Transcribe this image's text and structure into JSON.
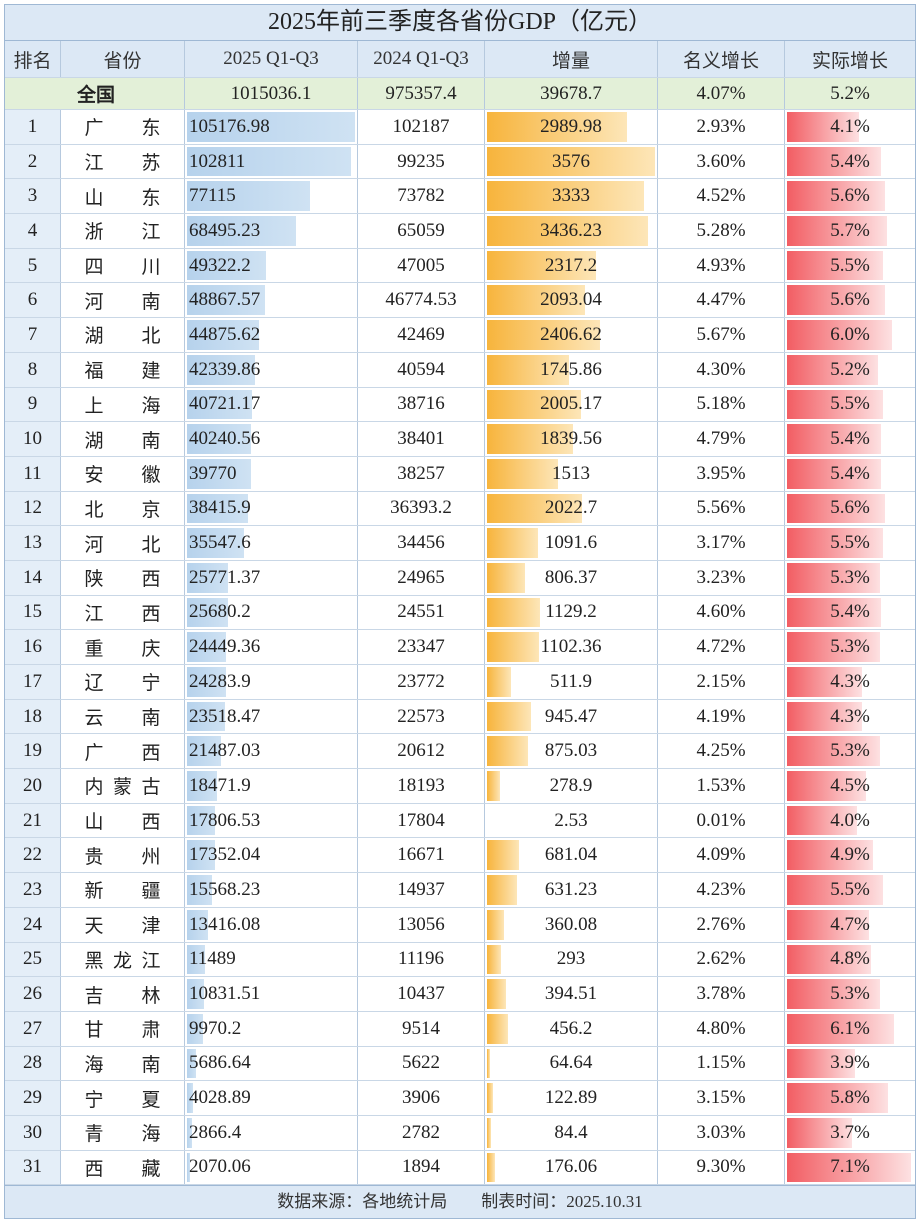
{
  "chart_data": {
    "type": "table",
    "title": "2025年前三季度各省份GDP（亿元）",
    "columns": [
      "排名",
      "省份",
      "2025 Q1-Q3",
      "2024 Q1-Q3",
      "增量",
      "名义增长",
      "实际增长"
    ],
    "national": {
      "name": "全国",
      "gdp2025": "1015036.1",
      "gdp2024": "975357.4",
      "increase": "39678.7",
      "nominal": "4.07%",
      "real": "5.2%"
    },
    "rows": [
      [
        "1",
        "广东",
        "105176.98",
        "102187",
        "2989.98",
        "2.93%",
        "4.1%"
      ],
      [
        "2",
        "江苏",
        "102811",
        "99235",
        "3576",
        "3.60%",
        "5.4%"
      ],
      [
        "3",
        "山东",
        "77115",
        "73782",
        "3333",
        "4.52%",
        "5.6%"
      ],
      [
        "4",
        "浙江",
        "68495.23",
        "65059",
        "3436.23",
        "5.28%",
        "5.7%"
      ],
      [
        "5",
        "四川",
        "49322.2",
        "47005",
        "2317.2",
        "4.93%",
        "5.5%"
      ],
      [
        "6",
        "河南",
        "48867.57",
        "46774.53",
        "2093.04",
        "4.47%",
        "5.6%"
      ],
      [
        "7",
        "湖北",
        "44875.62",
        "42469",
        "2406.62",
        "5.67%",
        "6.0%"
      ],
      [
        "8",
        "福建",
        "42339.86",
        "40594",
        "1745.86",
        "4.30%",
        "5.2%"
      ],
      [
        "9",
        "上海",
        "40721.17",
        "38716",
        "2005.17",
        "5.18%",
        "5.5%"
      ],
      [
        "10",
        "湖南",
        "40240.56",
        "38401",
        "1839.56",
        "4.79%",
        "5.4%"
      ],
      [
        "11",
        "安徽",
        "39770",
        "38257",
        "1513",
        "3.95%",
        "5.4%"
      ],
      [
        "12",
        "北京",
        "38415.9",
        "36393.2",
        "2022.7",
        "5.56%",
        "5.6%"
      ],
      [
        "13",
        "河北",
        "35547.6",
        "34456",
        "1091.6",
        "3.17%",
        "5.5%"
      ],
      [
        "14",
        "陕西",
        "25771.37",
        "24965",
        "806.37",
        "3.23%",
        "5.3%"
      ],
      [
        "15",
        "江西",
        "25680.2",
        "24551",
        "1129.2",
        "4.60%",
        "5.4%"
      ],
      [
        "16",
        "重庆",
        "24449.36",
        "23347",
        "1102.36",
        "4.72%",
        "5.3%"
      ],
      [
        "17",
        "辽宁",
        "24283.9",
        "23772",
        "511.9",
        "2.15%",
        "4.3%"
      ],
      [
        "18",
        "云南",
        "23518.47",
        "22573",
        "945.47",
        "4.19%",
        "4.3%"
      ],
      [
        "19",
        "广西",
        "21487.03",
        "20612",
        "875.03",
        "4.25%",
        "5.3%"
      ],
      [
        "20",
        "内蒙古",
        "18471.9",
        "18193",
        "278.9",
        "1.53%",
        "4.5%"
      ],
      [
        "21",
        "山西",
        "17806.53",
        "17804",
        "2.53",
        "0.01%",
        "4.0%"
      ],
      [
        "22",
        "贵州",
        "17352.04",
        "16671",
        "681.04",
        "4.09%",
        "4.9%"
      ],
      [
        "23",
        "新疆",
        "15568.23",
        "14937",
        "631.23",
        "4.23%",
        "5.5%"
      ],
      [
        "24",
        "天津",
        "13416.08",
        "13056",
        "360.08",
        "2.76%",
        "4.7%"
      ],
      [
        "25",
        "黑龙江",
        "11489",
        "11196",
        "293",
        "2.62%",
        "4.8%"
      ],
      [
        "26",
        "吉林",
        "10831.51",
        "10437",
        "394.51",
        "3.78%",
        "5.3%"
      ],
      [
        "27",
        "甘肃",
        "9970.2",
        "9514",
        "456.2",
        "4.80%",
        "6.1%"
      ],
      [
        "28",
        "海南",
        "5686.64",
        "5622",
        "64.64",
        "1.15%",
        "3.9%"
      ],
      [
        "29",
        "宁夏",
        "4028.89",
        "3906",
        "122.89",
        "3.15%",
        "5.8%"
      ],
      [
        "30",
        "青海",
        "2866.4",
        "2782",
        "84.4",
        "3.03%",
        "3.7%"
      ],
      [
        "31",
        "西藏",
        "2070.06",
        "1894",
        "176.06",
        "9.30%",
        "7.1%"
      ]
    ],
    "bar_colors": {
      "gdp2025": "#b6d2ec",
      "increase": "#f7b43c",
      "real": "#f25d63"
    }
  },
  "footer": "数据来源：各地统计局　　制表时间：2025.10.31"
}
